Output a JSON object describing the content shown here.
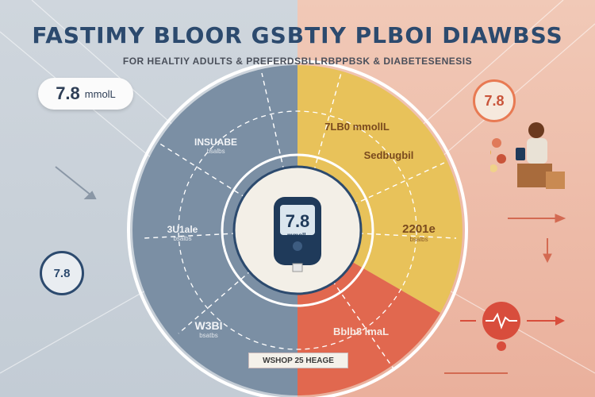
{
  "title": "FASTIMY BLOOR GSBTIY PLBOI DIAWBSS",
  "subtitle": "FOR HEALTIY ADULTS & PREFERDSBLLRBPPBSK & DIABETESENESIS",
  "pill_left": {
    "value": "7.8",
    "unit": "mmolL"
  },
  "badge_right": "7.8",
  "badge_left": "7.8",
  "meter": {
    "reading": "7.8",
    "unit": "mmolL"
  },
  "segments": {
    "top_left": {
      "title": "INSUABE",
      "sub": "bsalbs"
    },
    "mid_left": {
      "title": "3U1ale",
      "sub": "bsalbs"
    },
    "bot_left": {
      "title": "W3BI",
      "sub": "bsatbs"
    },
    "top_right": {
      "title": "7LB0 mmollL",
      "sub": ""
    },
    "mid_right_top": {
      "title": "Sedbugbil",
      "sub": ""
    },
    "mid_right": {
      "title": "2201e",
      "sub": "bsalbs"
    },
    "bot_right": {
      "title": "Bblb8 lmaL",
      "sub": ""
    }
  },
  "banner": "WSHOP 25 HEAGE",
  "colors": {
    "left_segment": "#7b8fa4",
    "right_segment": "#e8c25a",
    "bottom_right_segment": "#e1684f",
    "navy": "#2c4a6e"
  }
}
